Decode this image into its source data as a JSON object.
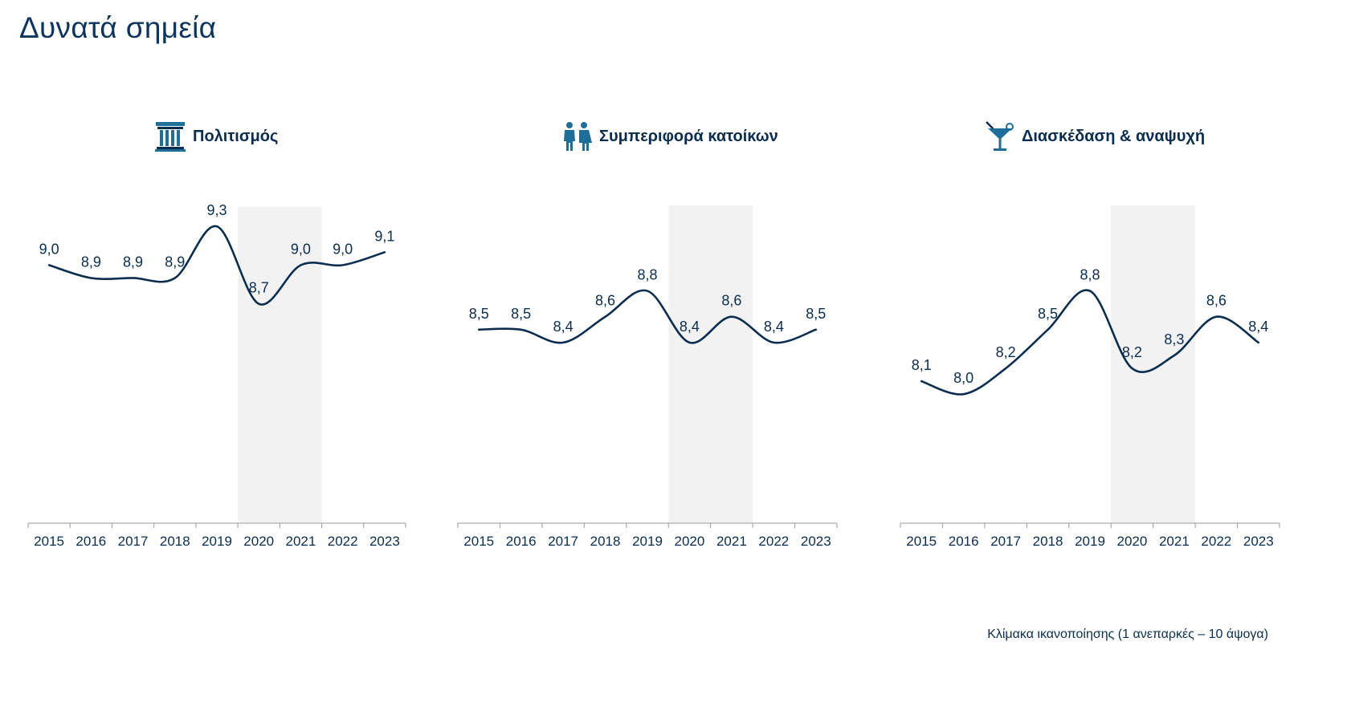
{
  "page": {
    "title": "Δυνατά σημεία"
  },
  "footnote": "Κλίμακα ικανοποίησης (1 ανεπαρκές – 10 άψογα)",
  "colors": {
    "line": "#0b2d4f",
    "shade": "#f2f2f2",
    "axis": "#9a9a9a",
    "icon": "#1d6f9a"
  },
  "chart_data": [
    {
      "type": "line",
      "title": "Πολιτισμός",
      "icon": "temple-column-icon",
      "x": [
        "2015",
        "2016",
        "2017",
        "2018",
        "2019",
        "2020",
        "2021",
        "2022",
        "2023"
      ],
      "values": [
        9.0,
        8.9,
        8.9,
        8.9,
        9.3,
        8.7,
        9.0,
        9.0,
        9.1
      ],
      "value_labels": [
        "9,0",
        "8,9",
        "8,9",
        "8,9",
        "9,3",
        "8,7",
        "9,0",
        "9,0",
        "9,1"
      ],
      "shaded_years": [
        "2020",
        "2021"
      ],
      "ylim": [
        7.0,
        9.5
      ],
      "grid": false,
      "smooth": true
    },
    {
      "type": "line",
      "title": "Συμπεριφορά κατοίκων",
      "icon": "people-icon",
      "x": [
        "2015",
        "2016",
        "2017",
        "2018",
        "2019",
        "2020",
        "2021",
        "2022",
        "2023"
      ],
      "values": [
        8.5,
        8.5,
        8.4,
        8.6,
        8.8,
        8.4,
        8.6,
        8.4,
        8.5
      ],
      "value_labels": [
        "8,5",
        "8,5",
        "8,4",
        "8,6",
        "8,8",
        "8,4",
        "8,6",
        "8,4",
        "8,5"
      ],
      "shaded_years": [
        "2020",
        "2021"
      ],
      "ylim": [
        7.0,
        9.5
      ],
      "grid": false,
      "smooth": true
    },
    {
      "type": "line",
      "title": "Διασκέδαση & αναψυχή",
      "icon": "cocktail-glass-icon",
      "x": [
        "2015",
        "2016",
        "2017",
        "2018",
        "2019",
        "2020",
        "2021",
        "2022",
        "2023"
      ],
      "values": [
        8.1,
        8.0,
        8.2,
        8.5,
        8.8,
        8.2,
        8.3,
        8.6,
        8.4
      ],
      "value_labels": [
        "8,1",
        "8,0",
        "8,2",
        "8,5",
        "8,8",
        "8,2",
        "8,3",
        "8,6",
        "8,4"
      ],
      "shaded_years": [
        "2020",
        "2021"
      ],
      "ylim": [
        7.0,
        9.5
      ],
      "grid": false,
      "smooth": true
    }
  ]
}
